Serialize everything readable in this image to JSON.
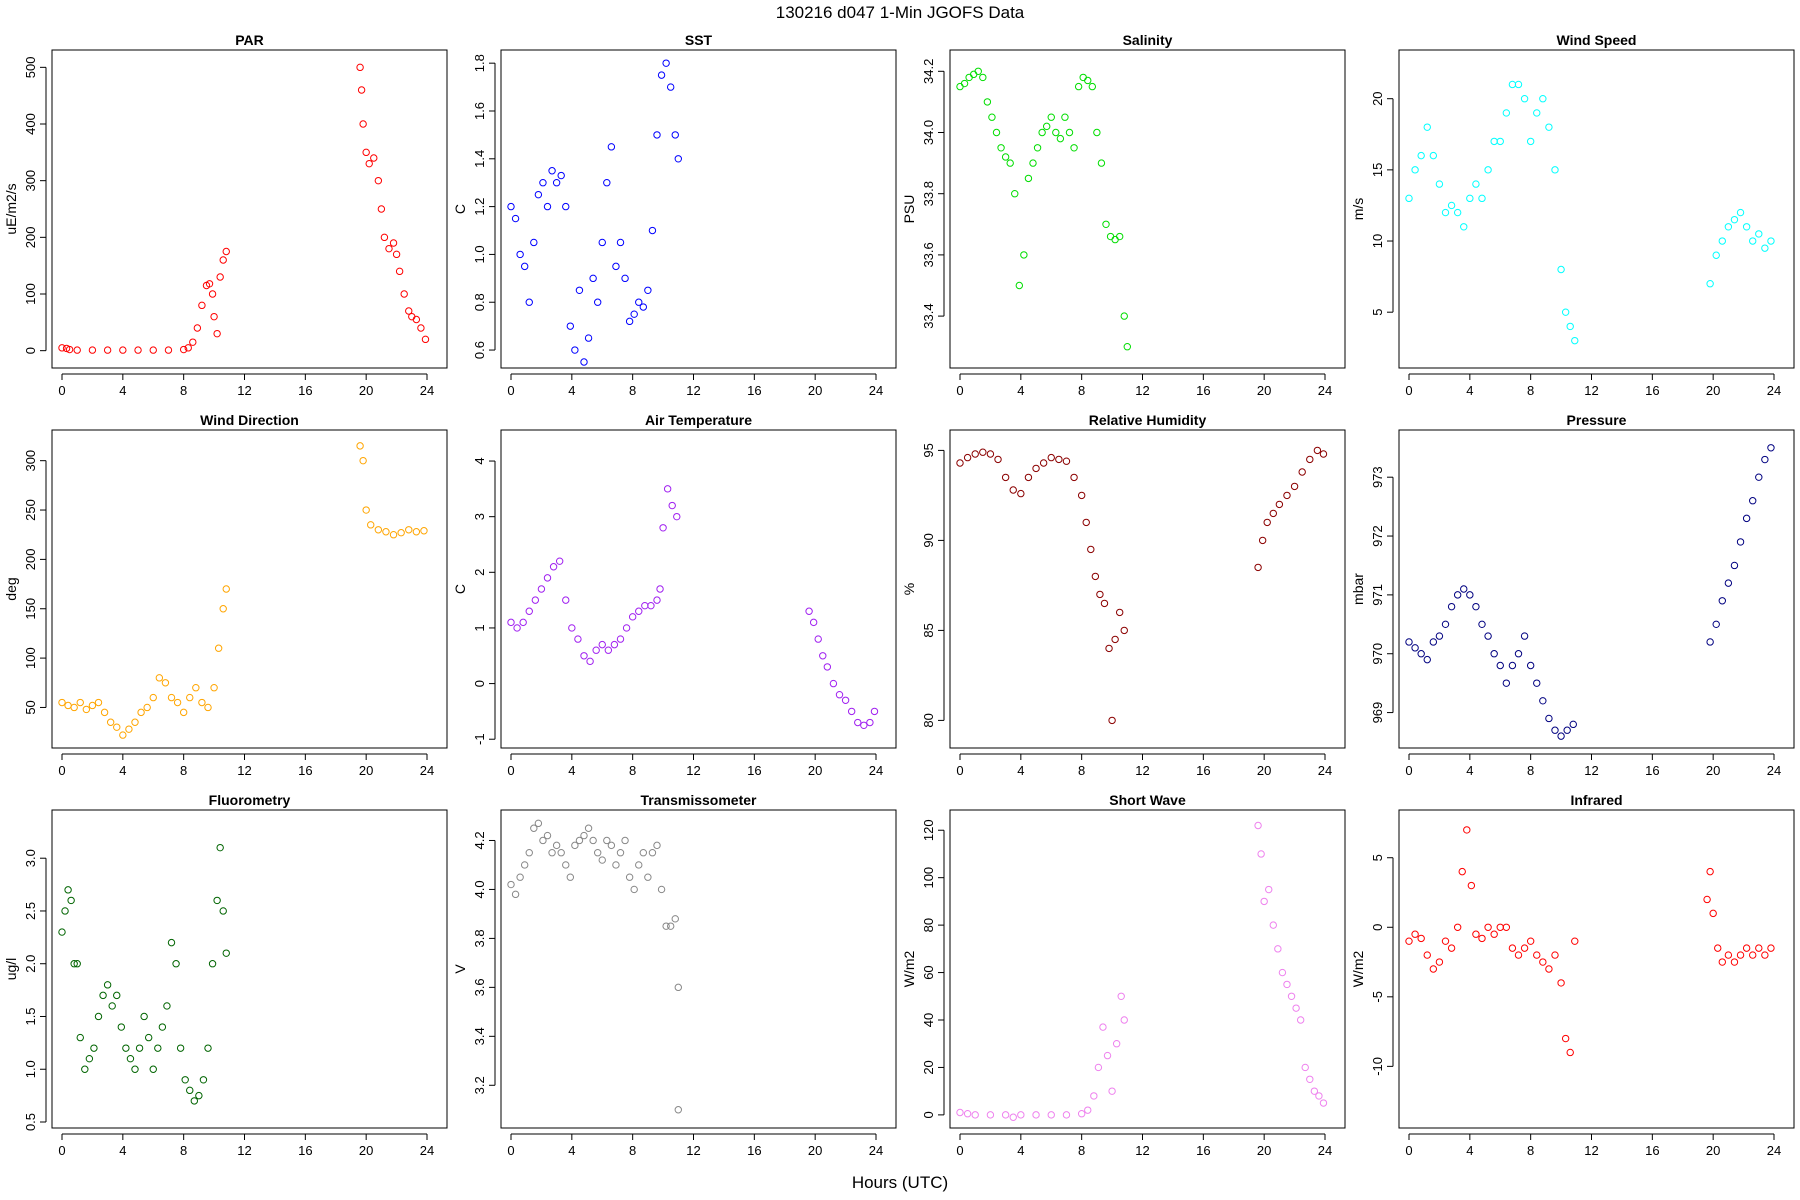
{
  "figure": {
    "title": "130216   d047   1-Min  JGOFS Data",
    "xlabel": "Hours (UTC)"
  },
  "chart_data": [
    {
      "type": "scatter",
      "title": "PAR",
      "ylabel": "uE/m2/s",
      "color": "#ff0000",
      "xlim": [
        0,
        24
      ],
      "xticks": [
        0,
        4,
        8,
        12,
        16,
        20,
        24
      ],
      "yticks": [
        0,
        100,
        200,
        300,
        400,
        500
      ],
      "ylim": [
        -20,
        520
      ],
      "x": [
        0,
        0.3,
        0.5,
        1,
        2,
        3,
        4,
        5,
        6,
        7,
        8,
        8.3,
        8.6,
        8.9,
        9.2,
        9.5,
        9.7,
        9.9,
        10,
        10.2,
        10.4,
        10.6,
        10.8,
        19.6,
        19.7,
        19.8,
        20,
        20.2,
        20.5,
        20.8,
        21,
        21.2,
        21.5,
        21.8,
        22,
        22.2,
        22.5,
        22.8,
        23,
        23.3,
        23.6,
        23.9
      ],
      "y": [
        5,
        4,
        2,
        1,
        1,
        1,
        1,
        1,
        1,
        1,
        2,
        5,
        15,
        40,
        80,
        115,
        118,
        100,
        60,
        30,
        130,
        160,
        175,
        500,
        460,
        400,
        350,
        330,
        340,
        300,
        250,
        200,
        180,
        190,
        170,
        140,
        100,
        70,
        60,
        55,
        40,
        20
      ]
    },
    {
      "type": "scatter",
      "title": "SST",
      "ylabel": "C",
      "color": "#0000ff",
      "xlim": [
        0,
        24
      ],
      "xticks": [
        0,
        4,
        8,
        12,
        16,
        20,
        24
      ],
      "yticks": [
        0.6,
        0.8,
        1.0,
        1.2,
        1.4,
        1.6,
        1.8
      ],
      "ylim": [
        0.55,
        1.83
      ],
      "x": [
        0,
        0.3,
        0.6,
        0.9,
        1.2,
        1.5,
        1.8,
        2.1,
        2.4,
        2.7,
        3.0,
        3.3,
        3.6,
        3.9,
        4.2,
        4.5,
        4.8,
        5.1,
        5.4,
        5.7,
        6.0,
        6.3,
        6.6,
        6.9,
        7.2,
        7.5,
        7.8,
        8.1,
        8.4,
        8.7,
        9.0,
        9.3,
        9.6,
        9.9,
        10.2,
        10.5,
        10.8,
        11.0
      ],
      "y": [
        1.2,
        1.15,
        1.0,
        0.95,
        0.8,
        1.05,
        1.25,
        1.3,
        1.2,
        1.35,
        1.3,
        1.33,
        1.2,
        0.7,
        0.6,
        0.85,
        0.55,
        0.65,
        0.9,
        0.8,
        1.05,
        1.3,
        1.45,
        0.95,
        1.05,
        0.9,
        0.72,
        0.75,
        0.8,
        0.78,
        0.85,
        1.1,
        1.5,
        1.75,
        1.8,
        1.7,
        1.5,
        1.4
      ]
    },
    {
      "type": "scatter",
      "title": "Salinity",
      "ylabel": "PSU",
      "color": "#00dd00",
      "xlim": [
        0,
        24
      ],
      "xticks": [
        0,
        4,
        8,
        12,
        16,
        20,
        24
      ],
      "yticks": [
        33.4,
        33.6,
        33.8,
        34.0,
        34.2
      ],
      "ylim": [
        33.25,
        34.25
      ],
      "x": [
        0,
        0.3,
        0.6,
        0.9,
        1.2,
        1.5,
        1.8,
        2.1,
        2.4,
        2.7,
        3.0,
        3.3,
        3.6,
        3.9,
        4.2,
        4.5,
        4.8,
        5.1,
        5.4,
        5.7,
        6.0,
        6.3,
        6.6,
        6.9,
        7.2,
        7.5,
        7.8,
        8.1,
        8.4,
        8.7,
        9.0,
        9.3,
        9.6,
        9.9,
        10.2,
        10.5,
        10.8,
        11.0
      ],
      "y": [
        34.15,
        34.16,
        34.18,
        34.19,
        34.2,
        34.18,
        34.1,
        34.05,
        34.0,
        33.95,
        33.92,
        33.9,
        33.8,
        33.5,
        33.6,
        33.85,
        33.9,
        33.95,
        34.0,
        34.02,
        34.05,
        34.0,
        33.98,
        34.05,
        34.0,
        33.95,
        34.15,
        34.18,
        34.17,
        34.15,
        34.0,
        33.9,
        33.7,
        33.66,
        33.65,
        33.66,
        33.4,
        33.3
      ]
    },
    {
      "type": "scatter",
      "title": "Wind Speed",
      "ylabel": "m/s",
      "color": "#00ffff",
      "xlim": [
        0,
        24
      ],
      "xticks": [
        0,
        4,
        8,
        12,
        16,
        20,
        24
      ],
      "yticks": [
        5,
        10,
        15,
        20
      ],
      "ylim": [
        1.5,
        23
      ],
      "x": [
        0,
        0.4,
        0.8,
        1.2,
        1.6,
        2.0,
        2.4,
        2.8,
        3.2,
        3.6,
        4.0,
        4.4,
        4.8,
        5.2,
        5.6,
        6.0,
        6.4,
        6.8,
        7.2,
        7.6,
        8.0,
        8.4,
        8.8,
        9.2,
        9.6,
        10.0,
        10.3,
        10.6,
        10.9,
        19.8,
        20.2,
        20.6,
        21.0,
        21.4,
        21.8,
        22.2,
        22.6,
        23.0,
        23.4,
        23.8
      ],
      "y": [
        13,
        15,
        16,
        18,
        16,
        14,
        12,
        12.5,
        12,
        11,
        13,
        14,
        13,
        15,
        17,
        17,
        19,
        21,
        21,
        20,
        17,
        19,
        20,
        18,
        15,
        8,
        5,
        4,
        3,
        7,
        9,
        10,
        11,
        11.5,
        12,
        11,
        10,
        10.5,
        9.5,
        10
      ]
    },
    {
      "type": "scatter",
      "title": "Wind Direction",
      "ylabel": "deg",
      "color": "#ffa500",
      "xlim": [
        0,
        24
      ],
      "xticks": [
        0,
        4,
        8,
        12,
        16,
        20,
        24
      ],
      "yticks": [
        50,
        100,
        150,
        200,
        250,
        300
      ],
      "ylim": [
        15,
        325
      ],
      "x": [
        0,
        0.4,
        0.8,
        1.2,
        1.6,
        2.0,
        2.4,
        2.8,
        3.2,
        3.6,
        4.0,
        4.4,
        4.8,
        5.2,
        5.6,
        6.0,
        6.4,
        6.8,
        7.2,
        7.6,
        8.0,
        8.4,
        8.8,
        9.2,
        9.6,
        10.0,
        10.3,
        10.6,
        10.8,
        19.6,
        19.8,
        20.0,
        20.3,
        20.8,
        21.3,
        21.8,
        22.3,
        22.8,
        23.3,
        23.8
      ],
      "y": [
        55,
        52,
        50,
        55,
        48,
        52,
        55,
        45,
        35,
        30,
        22,
        28,
        35,
        45,
        50,
        60,
        80,
        75,
        60,
        55,
        45,
        60,
        70,
        55,
        50,
        70,
        110,
        150,
        170,
        315,
        300,
        250,
        235,
        230,
        228,
        225,
        227,
        230,
        228,
        229
      ]
    },
    {
      "type": "scatter",
      "title": "Air Temperature",
      "ylabel": "C",
      "color": "#a020f0",
      "xlim": [
        0,
        24
      ],
      "xticks": [
        0,
        4,
        8,
        12,
        16,
        20,
        24
      ],
      "yticks": [
        -1,
        0,
        1,
        2,
        3,
        4
      ],
      "ylim": [
        -1.05,
        4.45
      ],
      "x": [
        0,
        0.4,
        0.8,
        1.2,
        1.6,
        2.0,
        2.4,
        2.8,
        3.2,
        3.6,
        4.0,
        4.4,
        4.8,
        5.2,
        5.6,
        6.0,
        6.4,
        6.8,
        7.2,
        7.6,
        8.0,
        8.4,
        8.8,
        9.2,
        9.6,
        9.8,
        10.0,
        10.3,
        10.6,
        10.9,
        19.6,
        19.9,
        20.2,
        20.5,
        20.8,
        21.2,
        21.6,
        22.0,
        22.4,
        22.8,
        23.2,
        23.6,
        23.9
      ],
      "y": [
        1.1,
        1.0,
        1.1,
        1.3,
        1.5,
        1.7,
        1.9,
        2.1,
        2.2,
        1.5,
        1.0,
        0.8,
        0.5,
        0.4,
        0.6,
        0.7,
        0.6,
        0.7,
        0.8,
        1.0,
        1.2,
        1.3,
        1.4,
        1.4,
        1.5,
        1.7,
        2.8,
        3.5,
        3.2,
        3.0,
        1.3,
        1.1,
        0.8,
        0.5,
        0.3,
        0.0,
        -0.2,
        -0.3,
        -0.5,
        -0.7,
        -0.75,
        -0.7,
        -0.5
      ]
    },
    {
      "type": "scatter",
      "title": "Relative Humidity",
      "ylabel": "%",
      "color": "#8b0000",
      "xlim": [
        0,
        24
      ],
      "xticks": [
        0,
        4,
        8,
        12,
        16,
        20,
        24
      ],
      "yticks": [
        80,
        85,
        90,
        95
      ],
      "ylim": [
        78.8,
        95.8
      ],
      "x": [
        0,
        0.5,
        1.0,
        1.5,
        2.0,
        2.5,
        3.0,
        3.5,
        4.0,
        4.5,
        5.0,
        5.5,
        6.0,
        6.5,
        7.0,
        7.5,
        8.0,
        8.3,
        8.6,
        8.9,
        9.2,
        9.5,
        9.8,
        10.0,
        10.2,
        10.5,
        10.8,
        19.6,
        19.9,
        20.2,
        20.6,
        21.0,
        21.5,
        22.0,
        22.5,
        23.0,
        23.5,
        23.9
      ],
      "y": [
        94.3,
        94.6,
        94.8,
        94.9,
        94.8,
        94.5,
        93.5,
        92.8,
        92.6,
        93.5,
        94.0,
        94.3,
        94.6,
        94.5,
        94.4,
        93.5,
        92.5,
        91.0,
        89.5,
        88.0,
        87.0,
        86.5,
        84.0,
        80.0,
        84.5,
        86.0,
        85.0,
        88.5,
        90.0,
        91.0,
        91.5,
        92.0,
        92.5,
        93.0,
        93.8,
        94.5,
        95.0,
        94.8
      ]
    },
    {
      "type": "scatter",
      "title": "Pressure",
      "ylabel": "mbar",
      "color": "#000080",
      "xlim": [
        0,
        24
      ],
      "xticks": [
        0,
        4,
        8,
        12,
        16,
        20,
        24
      ],
      "yticks": [
        969,
        970,
        971,
        972,
        973
      ],
      "ylim": [
        968.5,
        973.7
      ],
      "x": [
        0,
        0.4,
        0.8,
        1.2,
        1.6,
        2.0,
        2.4,
        2.8,
        3.2,
        3.6,
        4.0,
        4.4,
        4.8,
        5.2,
        5.6,
        6.0,
        6.4,
        6.8,
        7.2,
        7.6,
        8.0,
        8.4,
        8.8,
        9.2,
        9.6,
        10.0,
        10.4,
        10.8,
        19.8,
        20.2,
        20.6,
        21.0,
        21.4,
        21.8,
        22.2,
        22.6,
        23.0,
        23.4,
        23.8
      ],
      "y": [
        970.2,
        970.1,
        970.0,
        969.9,
        970.2,
        970.3,
        970.5,
        970.8,
        971.0,
        971.1,
        971.0,
        970.8,
        970.5,
        970.3,
        970.0,
        969.8,
        969.5,
        969.8,
        970.0,
        970.3,
        969.8,
        969.5,
        969.2,
        968.9,
        968.7,
        968.6,
        968.7,
        968.8,
        970.2,
        970.5,
        970.9,
        971.2,
        971.5,
        971.9,
        972.3,
        972.6,
        973.0,
        973.3,
        973.5
      ]
    },
    {
      "type": "scatter",
      "title": "Fluorometry",
      "ylabel": "ug/l",
      "color": "#006400",
      "xlim": [
        0,
        24
      ],
      "xticks": [
        0,
        4,
        8,
        12,
        16,
        20,
        24
      ],
      "yticks": [
        0.5,
        1.0,
        1.5,
        2.0,
        2.5,
        3.0
      ],
      "ylim": [
        0.5,
        3.4
      ],
      "x": [
        0,
        0.2,
        0.4,
        0.6,
        0.8,
        1.0,
        1.2,
        1.5,
        1.8,
        2.1,
        2.4,
        2.7,
        3.0,
        3.3,
        3.6,
        3.9,
        4.2,
        4.5,
        4.8,
        5.1,
        5.4,
        5.7,
        6.0,
        6.3,
        6.6,
        6.9,
        7.2,
        7.5,
        7.8,
        8.1,
        8.4,
        8.7,
        9.0,
        9.3,
        9.6,
        9.9,
        10.2,
        10.4,
        10.6,
        10.8
      ],
      "y": [
        2.3,
        2.5,
        2.7,
        2.6,
        2.0,
        2.0,
        1.3,
        1.0,
        1.1,
        1.2,
        1.5,
        1.7,
        1.8,
        1.6,
        1.7,
        1.4,
        1.2,
        1.1,
        1.0,
        1.2,
        1.5,
        1.3,
        1.0,
        1.2,
        1.4,
        1.6,
        2.2,
        2.0,
        1.2,
        0.9,
        0.8,
        0.7,
        0.75,
        0.9,
        1.2,
        2.0,
        2.6,
        3.1,
        2.5,
        2.1
      ]
    },
    {
      "type": "scatter",
      "title": "Transmissometer",
      "ylabel": "V",
      "color": "#888888",
      "xlim": [
        0,
        24
      ],
      "xticks": [
        0,
        4,
        8,
        12,
        16,
        20,
        24
      ],
      "yticks": [
        3.2,
        3.4,
        3.6,
        3.8,
        4.0,
        4.2
      ],
      "ylim": [
        3.05,
        4.3
      ],
      "x": [
        0,
        0.3,
        0.6,
        0.9,
        1.2,
        1.5,
        1.8,
        2.1,
        2.4,
        2.7,
        3.0,
        3.3,
        3.6,
        3.9,
        4.2,
        4.5,
        4.8,
        5.1,
        5.4,
        5.7,
        6.0,
        6.3,
        6.6,
        6.9,
        7.2,
        7.5,
        7.8,
        8.1,
        8.4,
        8.7,
        9.0,
        9.3,
        9.6,
        9.9,
        10.2,
        10.5,
        10.8,
        11.0,
        11.0
      ],
      "y": [
        4.02,
        3.98,
        4.05,
        4.1,
        4.15,
        4.25,
        4.27,
        4.2,
        4.22,
        4.15,
        4.18,
        4.15,
        4.1,
        4.05,
        4.18,
        4.2,
        4.22,
        4.25,
        4.2,
        4.15,
        4.12,
        4.2,
        4.18,
        4.1,
        4.15,
        4.2,
        4.05,
        4.0,
        4.1,
        4.15,
        4.05,
        4.15,
        4.18,
        4.0,
        3.85,
        3.85,
        3.88,
        3.6,
        3.1
      ]
    },
    {
      "type": "scatter",
      "title": "Short Wave",
      "ylabel": "W/m2",
      "color": "#ee82ee",
      "xlim": [
        0,
        24
      ],
      "xticks": [
        0,
        4,
        8,
        12,
        16,
        20,
        24
      ],
      "yticks": [
        0,
        20,
        40,
        60,
        80,
        100,
        120
      ],
      "ylim": [
        -3,
        126
      ],
      "x": [
        0,
        0.5,
        1,
        2,
        3,
        3.5,
        4,
        5,
        6,
        7,
        8,
        8.4,
        8.8,
        9.1,
        9.4,
        9.7,
        10.0,
        10.3,
        10.6,
        10.8,
        19.6,
        19.8,
        20.0,
        20.3,
        20.6,
        20.9,
        21.2,
        21.5,
        21.8,
        22.1,
        22.4,
        22.7,
        23.0,
        23.3,
        23.6,
        23.9
      ],
      "y": [
        1,
        0.5,
        0,
        0,
        0,
        -1,
        0,
        0,
        0,
        0,
        0.5,
        2,
        8,
        20,
        37,
        25,
        10,
        30,
        50,
        40,
        122,
        110,
        90,
        95,
        80,
        70,
        60,
        55,
        50,
        45,
        40,
        20,
        15,
        10,
        8,
        5
      ]
    },
    {
      "type": "scatter",
      "title": "Infrared",
      "ylabel": "W/m2",
      "color": "#ff0000",
      "xlim": [
        0,
        24
      ],
      "xticks": [
        0,
        4,
        8,
        12,
        16,
        20,
        24
      ],
      "yticks": [
        -10,
        -5,
        0,
        5
      ],
      "ylim": [
        -14,
        8
      ],
      "x": [
        0,
        0.4,
        0.8,
        1.2,
        1.6,
        2.0,
        2.4,
        2.8,
        3.2,
        3.5,
        3.8,
        4.1,
        4.4,
        4.8,
        5.2,
        5.6,
        6.0,
        6.4,
        6.8,
        7.2,
        7.6,
        8.0,
        8.4,
        8.8,
        9.2,
        9.6,
        10.0,
        10.3,
        10.6,
        10.9,
        19.6,
        19.8,
        20.0,
        20.3,
        20.6,
        21.0,
        21.4,
        21.8,
        22.2,
        22.6,
        23.0,
        23.4,
        23.8
      ],
      "y": [
        -1,
        -0.5,
        -0.8,
        -2,
        -3,
        -2.5,
        -1,
        -1.5,
        0,
        4,
        7,
        3,
        -0.5,
        -0.8,
        0,
        -0.5,
        0,
        0,
        -1.5,
        -2,
        -1.5,
        -1,
        -2,
        -2.5,
        -3,
        -2,
        -4,
        -8,
        -9,
        -1,
        2,
        4,
        1,
        -1.5,
        -2.5,
        -2,
        -2.5,
        -2,
        -1.5,
        -2,
        -1.5,
        -2,
        -1.5
      ]
    }
  ]
}
